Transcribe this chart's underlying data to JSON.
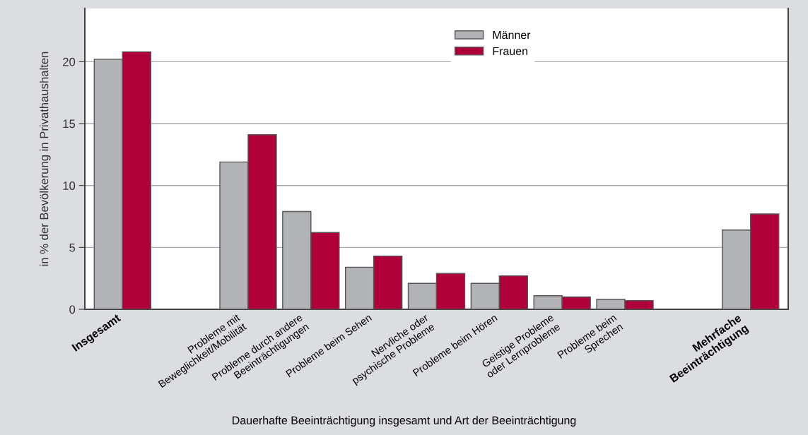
{
  "chart_data": {
    "type": "bar",
    "xlabel": "Dauerhafte Beeinträchtigung insgesamt und Art der Beeinträchtigung",
    "ylabel": "in % der Bevölkerung in Privathaushalten",
    "categories": [
      "Insgesamt",
      null,
      "Probleme mit\nBeweglichkeit/Mobilität",
      "Probleme durch andere\nBeeinträchtigungen",
      "Probleme beim Sehen",
      "Nervliche oder\npsychische Probleme",
      "Probleme beim Hören",
      "Geistige Probleme\noder Lernprobleme",
      "Probleme beim\nSprechen",
      null,
      "Mehrfache\nBeeinträchtigung"
    ],
    "series": [
      {
        "name": "Männer",
        "color": "#b1b3b6",
        "values": [
          20.2,
          null,
          11.9,
          7.9,
          3.4,
          2.1,
          2.1,
          1.1,
          0.8,
          null,
          6.4
        ]
      },
      {
        "name": "Frauen",
        "color": "#b0003a",
        "values": [
          20.8,
          null,
          14.1,
          6.2,
          4.3,
          2.9,
          2.7,
          1.0,
          0.7,
          null,
          7.7
        ]
      }
    ],
    "ylim": [
      0,
      24.3
    ],
    "yticks": [
      0,
      5,
      10,
      15,
      20
    ],
    "grid": "y",
    "legend": "top"
  }
}
